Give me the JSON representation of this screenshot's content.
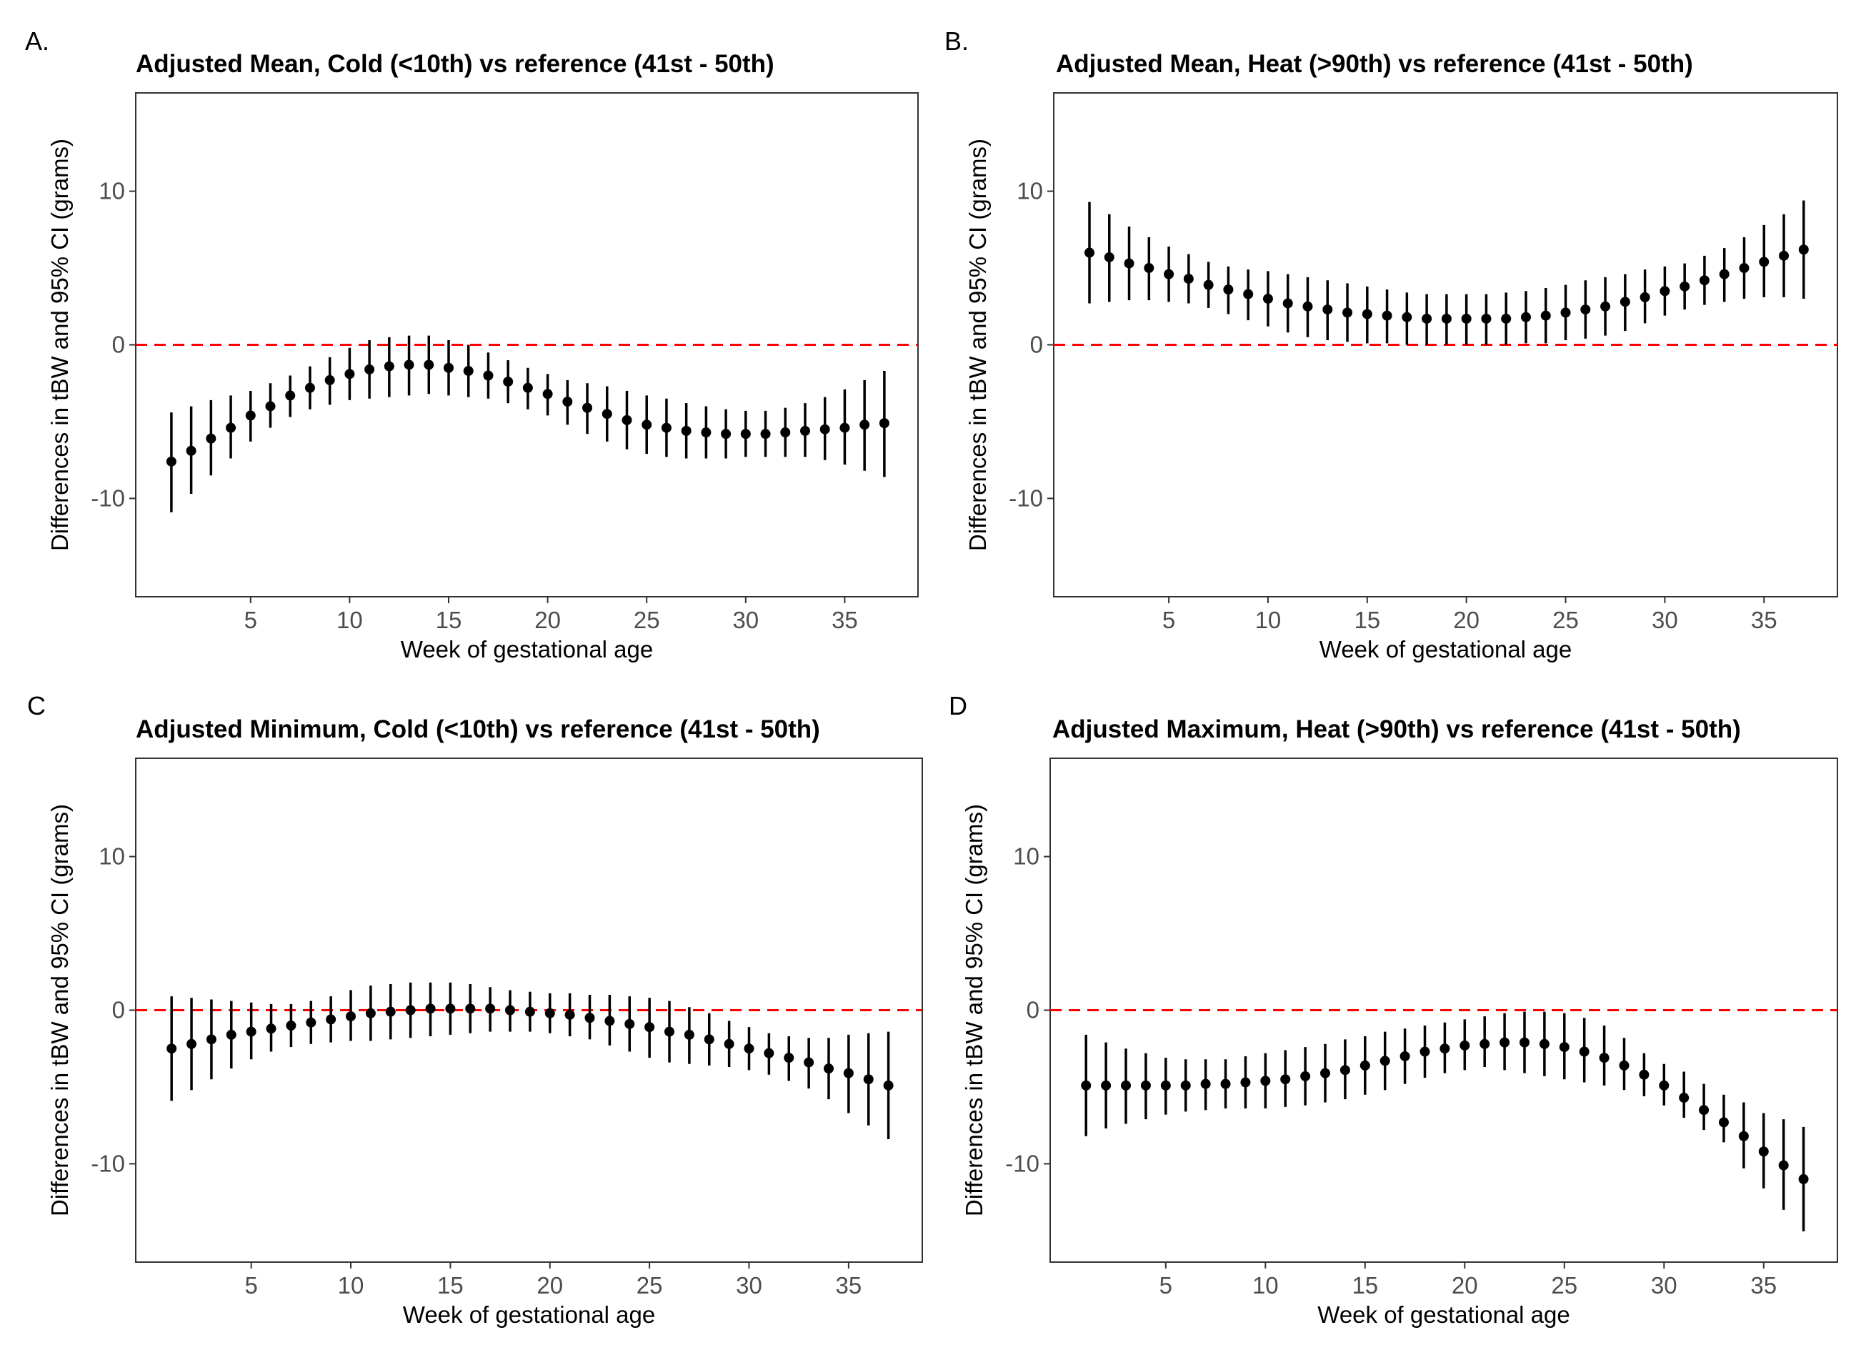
{
  "colors": {
    "reference_line": "#ff0000",
    "points": "#000000",
    "tick_labels": "#4d4d4d",
    "panel_border": "#333333"
  },
  "chart_data": [
    {
      "panel": "A.",
      "type": "scatter",
      "style": "point-range with vertical error bars",
      "title": "Adjusted Mean, Cold (<10th) vs reference (41st - 50th)",
      "xlabel": "Week of gestational age",
      "ylabel": "Differences in tBW and 95% CI (grams)",
      "xlim": [
        -0.8,
        38.7
      ],
      "ylim": [
        -16.4,
        16.4
      ],
      "xticks": [
        "5",
        "10",
        "15",
        "20",
        "25",
        "30",
        "35"
      ],
      "yticks": [
        "10",
        "0",
        "-10"
      ],
      "reference_line": {
        "y": 0,
        "style": "dashed"
      },
      "grid": false,
      "x": [
        1,
        2,
        3,
        4,
        5,
        6,
        7,
        8,
        9,
        10,
        11,
        12,
        13,
        14,
        15,
        16,
        17,
        18,
        19,
        20,
        21,
        22,
        23,
        24,
        25,
        26,
        27,
        28,
        29,
        30,
        31,
        32,
        33,
        34,
        35,
        36,
        37
      ],
      "y": [
        -7.6,
        -6.9,
        -6.1,
        -5.4,
        -4.6,
        -4.0,
        -3.3,
        -2.8,
        -2.3,
        -1.9,
        -1.6,
        -1.4,
        -1.3,
        -1.3,
        -1.5,
        -1.7,
        -2.0,
        -2.4,
        -2.8,
        -3.2,
        -3.7,
        -4.1,
        -4.5,
        -4.9,
        -5.2,
        -5.4,
        -5.6,
        -5.7,
        -5.8,
        -5.8,
        -5.8,
        -5.7,
        -5.6,
        -5.5,
        -5.4,
        -5.2,
        -5.1
      ],
      "lower": [
        -10.9,
        -9.7,
        -8.5,
        -7.4,
        -6.3,
        -5.4,
        -4.7,
        -4.2,
        -3.9,
        -3.6,
        -3.5,
        -3.4,
        -3.3,
        -3.2,
        -3.3,
        -3.4,
        -3.5,
        -3.8,
        -4.2,
        -4.6,
        -5.2,
        -5.8,
        -6.3,
        -6.8,
        -7.1,
        -7.3,
        -7.4,
        -7.4,
        -7.4,
        -7.3,
        -7.3,
        -7.3,
        -7.3,
        -7.5,
        -7.8,
        -8.2,
        -8.6
      ],
      "upper": [
        -4.4,
        -4.0,
        -3.6,
        -3.3,
        -3.0,
        -2.5,
        -2.0,
        -1.4,
        -0.8,
        -0.2,
        0.3,
        0.5,
        0.6,
        0.6,
        0.3,
        0.0,
        -0.5,
        -1.0,
        -1.5,
        -1.9,
        -2.3,
        -2.5,
        -2.7,
        -3.0,
        -3.3,
        -3.5,
        -3.8,
        -4.0,
        -4.2,
        -4.3,
        -4.3,
        -4.1,
        -3.8,
        -3.4,
        -2.9,
        -2.3,
        -1.7
      ]
    },
    {
      "panel": "B.",
      "type": "scatter",
      "style": "point-range with vertical error bars",
      "title": "Adjusted Mean, Heat (>90th) vs reference (41st - 50th)",
      "xlabel": "Week of gestational age",
      "ylabel": "Differences in tBW and 95% CI (grams)",
      "xlim": [
        -0.8,
        38.7
      ],
      "ylim": [
        -16.4,
        16.4
      ],
      "xticks": [
        "5",
        "10",
        "15",
        "20",
        "25",
        "30",
        "35"
      ],
      "yticks": [
        "10",
        "0",
        "-10"
      ],
      "reference_line": {
        "y": 0,
        "style": "dashed"
      },
      "grid": false,
      "x": [
        1,
        2,
        3,
        4,
        5,
        6,
        7,
        8,
        9,
        10,
        11,
        12,
        13,
        14,
        15,
        16,
        17,
        18,
        19,
        20,
        21,
        22,
        23,
        24,
        25,
        26,
        27,
        28,
        29,
        30,
        31,
        32,
        33,
        34,
        35,
        36,
        37
      ],
      "y": [
        6.0,
        5.7,
        5.3,
        5.0,
        4.6,
        4.3,
        3.9,
        3.6,
        3.3,
        3.0,
        2.7,
        2.5,
        2.3,
        2.1,
        2.0,
        1.9,
        1.8,
        1.7,
        1.7,
        1.7,
        1.7,
        1.7,
        1.8,
        1.9,
        2.1,
        2.3,
        2.5,
        2.8,
        3.1,
        3.5,
        3.8,
        4.2,
        4.6,
        5.0,
        5.4,
        5.8,
        6.2
      ],
      "lower": [
        2.7,
        2.8,
        2.9,
        2.9,
        2.8,
        2.7,
        2.4,
        2.0,
        1.6,
        1.2,
        0.8,
        0.5,
        0.3,
        0.2,
        0.1,
        0.1,
        0.0,
        0.0,
        0.0,
        0.0,
        0.0,
        0.0,
        0.1,
        0.1,
        0.3,
        0.4,
        0.6,
        0.9,
        1.4,
        1.9,
        2.3,
        2.6,
        2.8,
        3.0,
        3.1,
        3.1,
        3.0
      ],
      "upper": [
        9.3,
        8.5,
        7.7,
        7.0,
        6.4,
        5.9,
        5.4,
        5.1,
        4.9,
        4.8,
        4.6,
        4.4,
        4.2,
        4.0,
        3.8,
        3.6,
        3.4,
        3.3,
        3.3,
        3.3,
        3.3,
        3.4,
        3.5,
        3.7,
        3.9,
        4.2,
        4.4,
        4.6,
        4.9,
        5.1,
        5.3,
        5.8,
        6.3,
        7.0,
        7.8,
        8.5,
        9.4
      ]
    },
    {
      "panel": "C",
      "type": "scatter",
      "style": "point-range with vertical error bars",
      "title": "Adjusted Minimum, Cold (<10th) vs reference (41st - 50th)",
      "xlabel": "Week of gestational age",
      "ylabel": "Differences in tBW and 95% CI (grams)",
      "xlim": [
        -0.8,
        38.7
      ],
      "ylim": [
        -16.4,
        16.4
      ],
      "xticks": [
        "5",
        "10",
        "15",
        "20",
        "25",
        "30",
        "35"
      ],
      "yticks": [
        "10",
        "0",
        "-10"
      ],
      "reference_line": {
        "y": 0,
        "style": "dashed"
      },
      "grid": false,
      "x": [
        1,
        2,
        3,
        4,
        5,
        6,
        7,
        8,
        9,
        10,
        11,
        12,
        13,
        14,
        15,
        16,
        17,
        18,
        19,
        20,
        21,
        22,
        23,
        24,
        25,
        26,
        27,
        28,
        29,
        30,
        31,
        32,
        33,
        34,
        35,
        36,
        37
      ],
      "y": [
        -2.5,
        -2.2,
        -1.9,
        -1.6,
        -1.4,
        -1.2,
        -1.0,
        -0.8,
        -0.6,
        -0.4,
        -0.2,
        -0.1,
        0.0,
        0.1,
        0.1,
        0.1,
        0.1,
        0.0,
        -0.1,
        -0.2,
        -0.3,
        -0.5,
        -0.7,
        -0.9,
        -1.1,
        -1.4,
        -1.6,
        -1.9,
        -2.2,
        -2.5,
        -2.8,
        -3.1,
        -3.4,
        -3.8,
        -4.1,
        -4.5,
        -4.9
      ],
      "lower": [
        -5.9,
        -5.2,
        -4.5,
        -3.8,
        -3.2,
        -2.7,
        -2.4,
        -2.2,
        -2.1,
        -2.0,
        -2.0,
        -1.9,
        -1.8,
        -1.7,
        -1.6,
        -1.5,
        -1.4,
        -1.4,
        -1.4,
        -1.5,
        -1.7,
        -1.9,
        -2.3,
        -2.7,
        -3.1,
        -3.4,
        -3.5,
        -3.6,
        -3.7,
        -3.9,
        -4.2,
        -4.6,
        -5.1,
        -5.8,
        -6.7,
        -7.5,
        -8.4
      ],
      "upper": [
        0.9,
        0.8,
        0.7,
        0.6,
        0.5,
        0.4,
        0.4,
        0.6,
        0.9,
        1.3,
        1.6,
        1.7,
        1.8,
        1.8,
        1.8,
        1.7,
        1.5,
        1.3,
        1.2,
        1.1,
        1.1,
        1.0,
        1.0,
        0.9,
        0.8,
        0.6,
        0.2,
        -0.2,
        -0.7,
        -1.1,
        -1.5,
        -1.7,
        -1.8,
        -1.8,
        -1.6,
        -1.5,
        -1.4
      ]
    },
    {
      "panel": "D",
      "type": "scatter",
      "style": "point-range with vertical error bars",
      "title": "Adjusted Maximum, Heat (>90th) vs reference (41st - 50th)",
      "xlabel": "Week of gestational age",
      "ylabel": "Differences in tBW and 95% CI (grams)",
      "xlim": [
        -0.8,
        38.7
      ],
      "ylim": [
        -16.4,
        16.4
      ],
      "xticks": [
        "5",
        "10",
        "15",
        "20",
        "25",
        "30",
        "35"
      ],
      "yticks": [
        "10",
        "0",
        "-10"
      ],
      "reference_line": {
        "y": 0,
        "style": "dashed"
      },
      "grid": false,
      "x": [
        1,
        2,
        3,
        4,
        5,
        6,
        7,
        8,
        9,
        10,
        11,
        12,
        13,
        14,
        15,
        16,
        17,
        18,
        19,
        20,
        21,
        22,
        23,
        24,
        25,
        26,
        27,
        28,
        29,
        30,
        31,
        32,
        33,
        34,
        35,
        36,
        37
      ],
      "y": [
        -4.9,
        -4.9,
        -4.9,
        -4.9,
        -4.9,
        -4.9,
        -4.8,
        -4.8,
        -4.7,
        -4.6,
        -4.5,
        -4.3,
        -4.1,
        -3.9,
        -3.6,
        -3.3,
        -3.0,
        -2.7,
        -2.5,
        -2.3,
        -2.2,
        -2.1,
        -2.1,
        -2.2,
        -2.4,
        -2.7,
        -3.1,
        -3.6,
        -4.2,
        -4.9,
        -5.7,
        -6.5,
        -7.3,
        -8.2,
        -9.2,
        -10.1,
        -11.0
      ],
      "lower": [
        -8.2,
        -7.7,
        -7.4,
        -7.1,
        -6.8,
        -6.6,
        -6.5,
        -6.4,
        -6.4,
        -6.4,
        -6.3,
        -6.2,
        -6.0,
        -5.8,
        -5.5,
        -5.2,
        -4.8,
        -4.4,
        -4.1,
        -3.9,
        -3.7,
        -3.9,
        -4.1,
        -4.3,
        -4.5,
        -4.7,
        -4.9,
        -5.2,
        -5.6,
        -6.2,
        -7.0,
        -7.8,
        -8.6,
        -10.3,
        -11.6,
        -13.0,
        -14.4
      ],
      "upper": [
        -1.6,
        -2.1,
        -2.5,
        -2.8,
        -3.1,
        -3.2,
        -3.2,
        -3.2,
        -3.0,
        -2.8,
        -2.6,
        -2.4,
        -2.2,
        -1.9,
        -1.7,
        -1.4,
        -1.2,
        -1.0,
        -0.8,
        -0.6,
        -0.4,
        -0.2,
        -0.1,
        -0.1,
        -0.2,
        -0.5,
        -1.0,
        -1.8,
        -2.8,
        -3.5,
        -4.0,
        -4.8,
        -5.5,
        -6.0,
        -6.7,
        -7.1,
        -7.6
      ]
    }
  ]
}
